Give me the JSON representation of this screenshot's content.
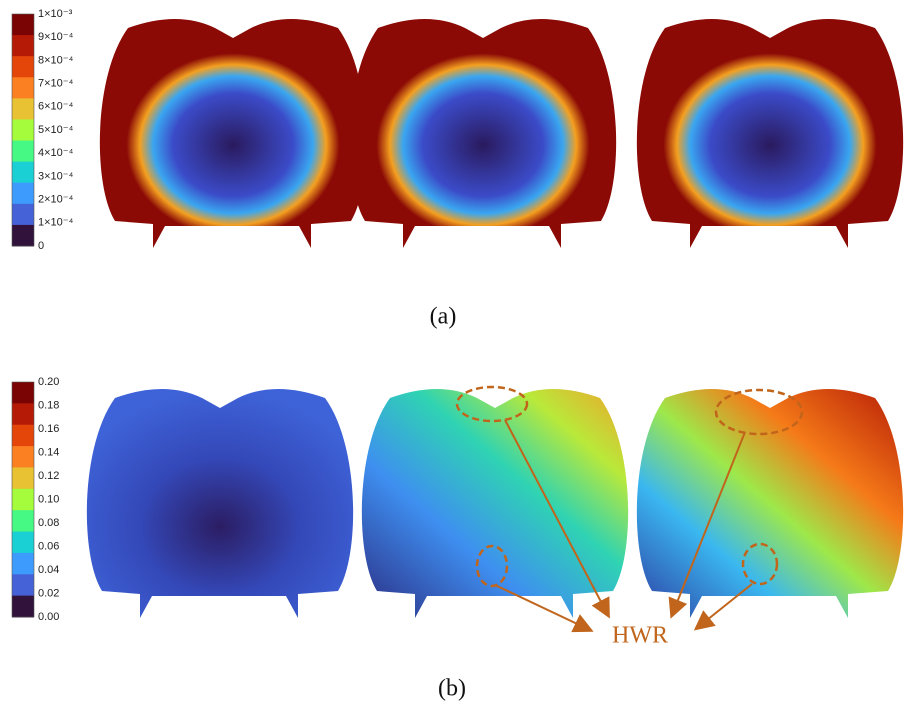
{
  "panel_a": {
    "caption": "(a)",
    "colorbar_labels": [
      "1×10⁻³",
      "9×10⁻⁴",
      "8×10⁻⁴",
      "7×10⁻⁴",
      "6×10⁻⁴",
      "5×10⁻⁴",
      "4×10⁻⁴",
      "3×10⁻⁴",
      "2×10⁻⁴",
      "1×10⁻⁴",
      "0"
    ]
  },
  "panel_b": {
    "caption": "(b)",
    "colorbar_labels": [
      "0.20",
      "0.18",
      "0.16",
      "0.14",
      "0.12",
      "0.10",
      "0.08",
      "0.06",
      "0.04",
      "0.02",
      "0.00"
    ],
    "annotation": "HWR"
  }
}
